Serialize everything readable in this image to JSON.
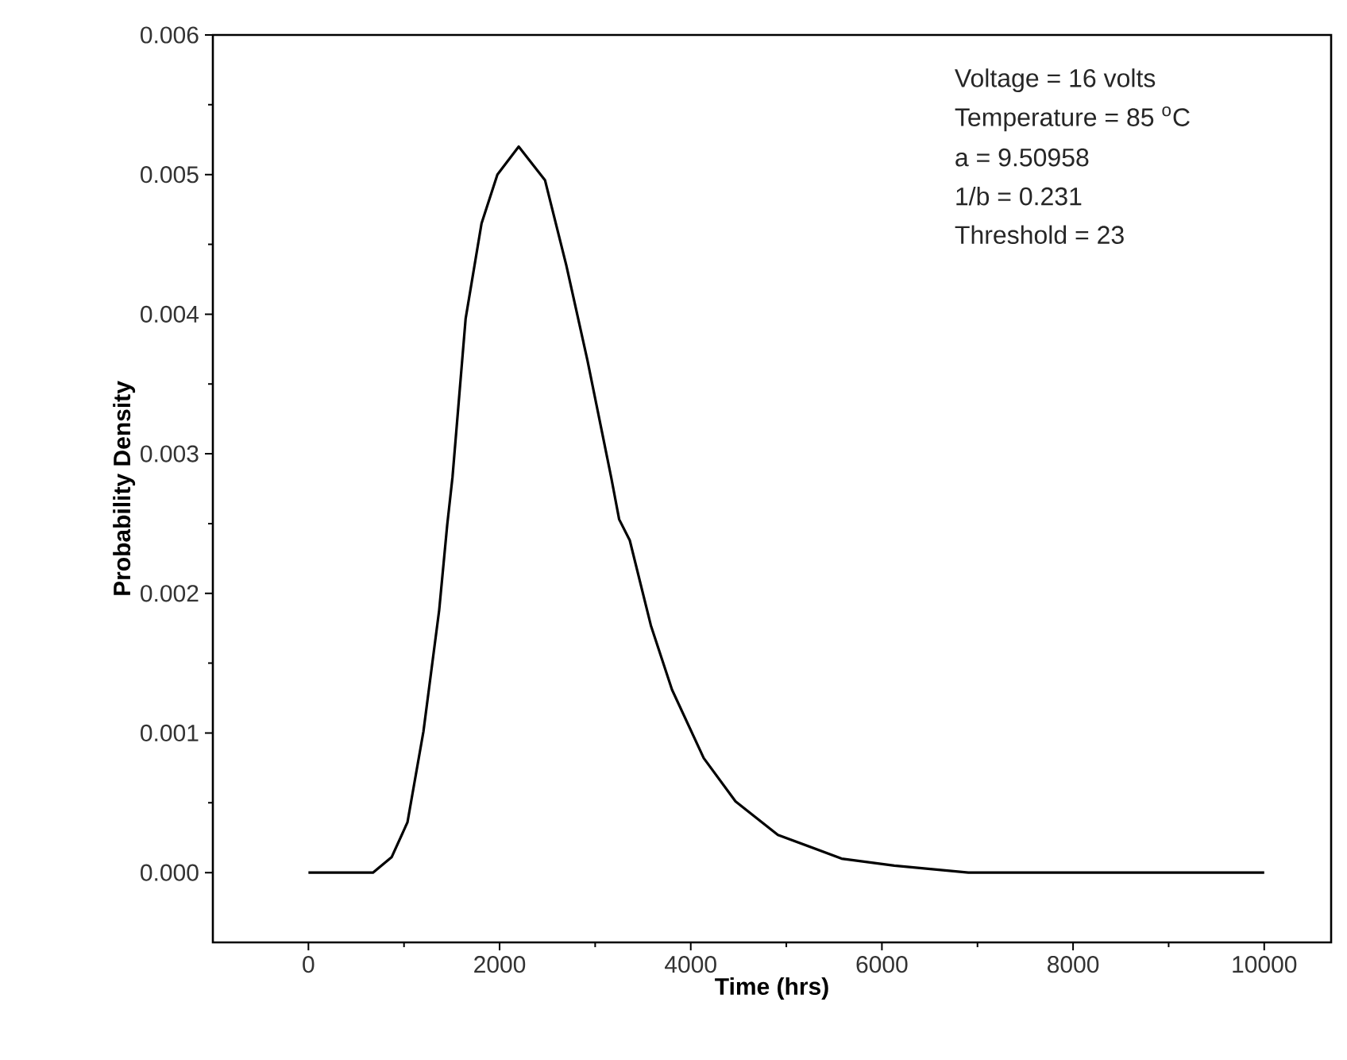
{
  "chart_data": {
    "type": "line",
    "xlabel": "Time (hrs)",
    "ylabel": "Probability Density",
    "x": [
      0,
      675,
      870,
      1036,
      1203,
      1368,
      1452,
      1507,
      1645,
      1811,
      1977,
      2200,
      2475,
      2698,
      2919,
      3168,
      3251,
      3362,
      3583,
      3804,
      4136,
      4468,
      4912,
      5578,
      6130,
      6905,
      8000,
      10000
    ],
    "values": [
      0,
      0,
      0.00011,
      0.00036,
      0.00101,
      0.00188,
      0.00249,
      0.00283,
      0.00397,
      0.00465,
      0.005,
      0.0052,
      0.00496,
      0.00435,
      0.00367,
      0.00283,
      0.00253,
      0.00238,
      0.00177,
      0.00131,
      0.00082,
      0.00051,
      0.00027,
      0.0001,
      5e-05,
      0,
      0,
      0
    ],
    "color": "#000000",
    "xlim": [
      -1000,
      10700
    ],
    "ylim": [
      -0.0005,
      0.006
    ],
    "xticks": [
      0,
      2000,
      4000,
      6000,
      8000,
      10000
    ],
    "yticks": [
      {
        "value": 0,
        "label": "0.000"
      },
      {
        "value": 0.001,
        "label": "0.001"
      },
      {
        "value": 0.002,
        "label": "0.002"
      },
      {
        "value": 0.003,
        "label": "0.003"
      },
      {
        "value": 0.004,
        "label": "0.004"
      },
      {
        "value": 0.005,
        "label": "0.005"
      },
      {
        "value": 0.006,
        "label": "0.006"
      }
    ],
    "annotations": [
      "Voltage = 16 volts",
      "Temperature = 85 $^{o}$C",
      "a = 9.50958",
      "1/b = 0.231",
      "Threshold = 23"
    ]
  }
}
